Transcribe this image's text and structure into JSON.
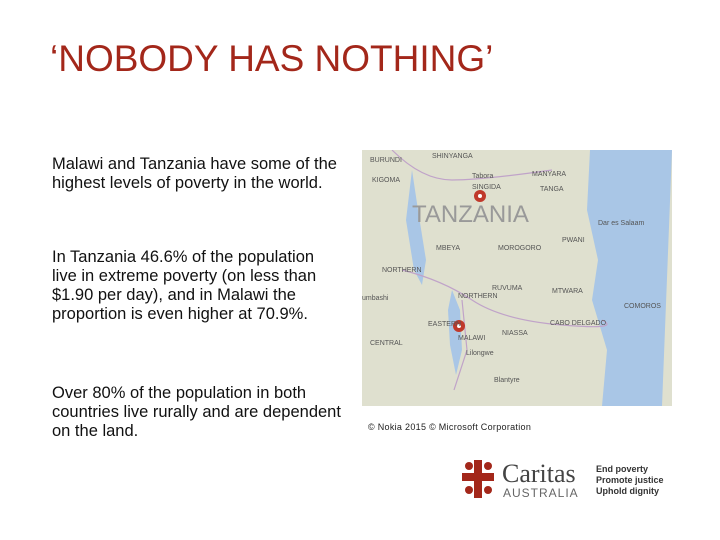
{
  "title": "‘NOBODY HAS NOTHING’",
  "paragraphs": [
    "Malawi and Tanzania have some of the highest levels of poverty in the world.",
    "In Tanzania 46.6% of the population live in extreme poverty (on less than $1.90 per day), and in Malawi the proportion is even higher at 70.9%.",
    "Over 80% of the population in both countries live rurally and are dependent on the land."
  ],
  "map": {
    "labels": [
      "BURUNDI",
      "SHINYANGA",
      "KIGOMA",
      "Tabora",
      "MANYARA",
      "SINGIDA",
      "TANGA",
      "Dar es Salaam",
      "TANZANIA",
      "MBEYA",
      "MOROGORO",
      "PWANI",
      "NORTHERN",
      "RUVUMA",
      "MTWARA",
      "umbashi",
      "NORTHERN",
      "EASTERN",
      "CABO DELGADO",
      "COMOROS",
      "CENTRAL",
      "NIASSA",
      "MALAWI",
      "Lilongwe",
      "Blantyre"
    ],
    "caption": "© Nokia 2015 © Microsoft Corporation"
  },
  "logo": {
    "name": "Caritas",
    "country": "AUSTRALIA",
    "taglines": [
      "End poverty",
      "Promote justice",
      "Uphold dignity"
    ]
  }
}
